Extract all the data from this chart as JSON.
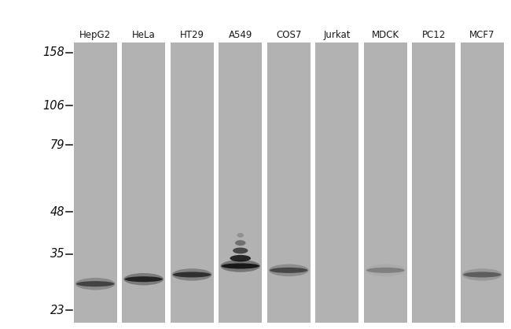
{
  "lane_labels": [
    "HepG2",
    "HeLa",
    "HT29",
    "A549",
    "COS7",
    "Jurkat",
    "MDCK",
    "PC12",
    "MCF7"
  ],
  "mw_markers": [
    158,
    106,
    79,
    48,
    35,
    23
  ],
  "fig_bg": "#ffffff",
  "lane_bg_color": "#b2b2b2",
  "sep_color": "#ffffff",
  "band_data": {
    "HepG2": {
      "mw": 28,
      "intensity": 0.82,
      "extra": false,
      "faint": false
    },
    "HeLa": {
      "mw": 29,
      "intensity": 0.95,
      "extra": false,
      "faint": false
    },
    "HT29": {
      "mw": 30,
      "intensity": 0.9,
      "extra": false,
      "faint": false
    },
    "A549": {
      "mw": 32,
      "intensity": 1.0,
      "extra": true,
      "faint": false
    },
    "COS7": {
      "mw": 31,
      "intensity": 0.8,
      "extra": false,
      "faint": false
    },
    "Jurkat": {
      "mw": 0,
      "intensity": 0.0,
      "extra": false,
      "faint": false
    },
    "MDCK": {
      "mw": 31,
      "intensity": 0.55,
      "extra": false,
      "faint": false
    },
    "PC12": {
      "mw": 0,
      "intensity": 0.0,
      "extra": false,
      "faint": false
    },
    "MCF7": {
      "mw": 30,
      "intensity": 0.7,
      "extra": false,
      "faint": false
    }
  },
  "mw_log_min": 1.322,
  "mw_log_max": 2.23,
  "label_fontsize": 8.5,
  "marker_fontsize": 10.5
}
